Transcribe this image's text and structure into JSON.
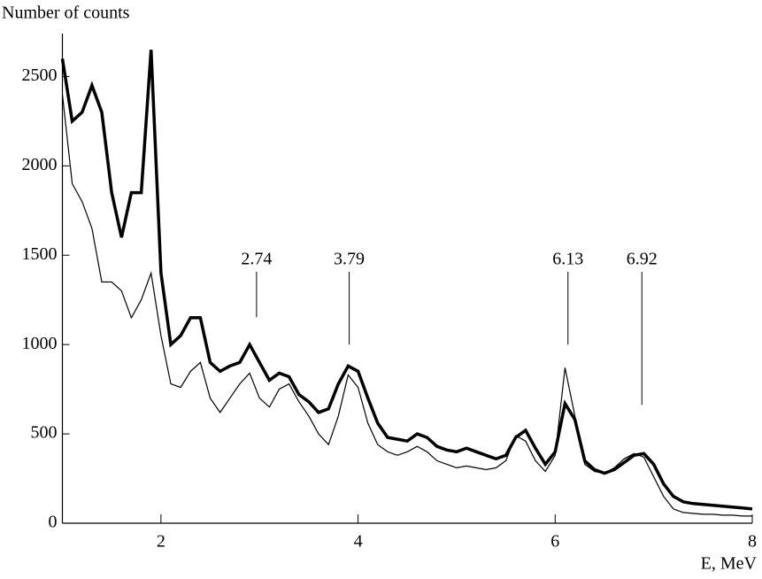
{
  "chart_data": {
    "type": "line",
    "ylabel": "Number of counts",
    "xlabel": "E, MeV",
    "xlim": [
      1,
      8
    ],
    "xticks": [
      2,
      4,
      6,
      8
    ],
    "ylim": [
      0,
      2740
    ],
    "yticks": [
      0,
      500,
      1000,
      1500,
      2000,
      2500
    ],
    "x": [
      1.0,
      1.1,
      1.2,
      1.3,
      1.4,
      1.5,
      1.6,
      1.7,
      1.8,
      1.9,
      2.0,
      2.1,
      2.2,
      2.3,
      2.4,
      2.5,
      2.6,
      2.7,
      2.8,
      2.9,
      3.0,
      3.1,
      3.2,
      3.3,
      3.4,
      3.5,
      3.6,
      3.7,
      3.8,
      3.9,
      4.0,
      4.1,
      4.2,
      4.3,
      4.4,
      4.5,
      4.6,
      4.7,
      4.8,
      4.9,
      5.0,
      5.1,
      5.2,
      5.3,
      5.4,
      5.5,
      5.6,
      5.7,
      5.8,
      5.9,
      6.0,
      6.1,
      6.2,
      6.3,
      6.4,
      6.5,
      6.6,
      6.7,
      6.8,
      6.9,
      7.0,
      7.1,
      7.2,
      7.3,
      7.4,
      7.5,
      7.6,
      7.7,
      7.8,
      7.9,
      8.0
    ],
    "series": [
      {
        "color": "#000000",
        "width": 3.5,
        "values": [
          2600,
          2250,
          2300,
          2450,
          2300,
          1850,
          1600,
          1850,
          1850,
          2650,
          1400,
          1000,
          1050,
          1150,
          1150,
          900,
          850,
          880,
          900,
          1000,
          900,
          800,
          840,
          820,
          720,
          680,
          620,
          640,
          780,
          880,
          850,
          700,
          560,
          480,
          470,
          460,
          500,
          480,
          430,
          410,
          400,
          420,
          400,
          380,
          360,
          380,
          480,
          520,
          420,
          330,
          400,
          670,
          580,
          350,
          300,
          280,
          300,
          340,
          380,
          390,
          330,
          220,
          150,
          120,
          110,
          105,
          100,
          95,
          90,
          85,
          80
        ]
      },
      {
        "color": "#000000",
        "width": 1.2,
        "values": [
          2400,
          1900,
          1800,
          1650,
          1350,
          1350,
          1300,
          1150,
          1250,
          1400,
          1050,
          780,
          760,
          850,
          900,
          700,
          620,
          700,
          780,
          840,
          700,
          650,
          750,
          780,
          680,
          600,
          500,
          440,
          600,
          830,
          760,
          560,
          440,
          400,
          380,
          400,
          430,
          400,
          350,
          330,
          310,
          320,
          310,
          300,
          310,
          350,
          490,
          460,
          350,
          290,
          380,
          870,
          600,
          330,
          290,
          280,
          310,
          360,
          390,
          370,
          260,
          150,
          80,
          60,
          55,
          50,
          50,
          45,
          45,
          40,
          40
        ]
      }
    ],
    "annotations": [
      {
        "text": "2.74",
        "x": 2.97,
        "y": 1153
      },
      {
        "text": "3.79",
        "x": 3.91,
        "y": 1000
      },
      {
        "text": "6.13",
        "x": 6.13,
        "y": 1000
      },
      {
        "text": "6.92",
        "x": 6.88,
        "y": 663
      }
    ]
  }
}
